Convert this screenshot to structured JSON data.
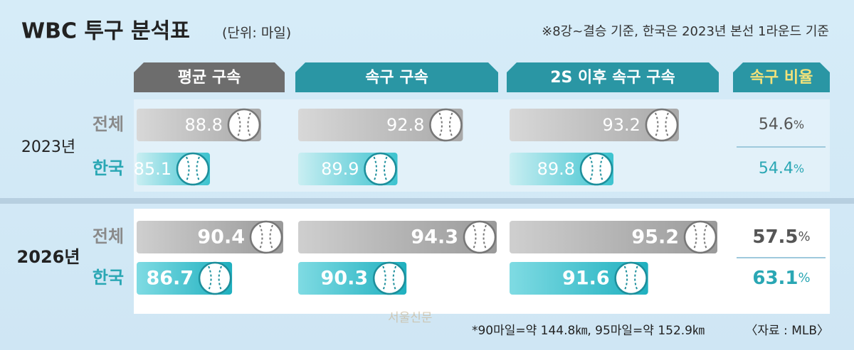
{
  "header": {
    "title": "WBC 투구 분석표",
    "unit": "(단위: 마일)",
    "note": "※8강~결승 기준, 한국은 2023년 본선 1라운드 기준"
  },
  "columns": [
    "평균 구속",
    "속구 구속",
    "2S 이후 속구 구속",
    "속구 비율"
  ],
  "row_labels": [
    "전체",
    "한국"
  ],
  "years": [
    {
      "label": "2023년",
      "rows": [
        {
          "speeds": [
            88.8,
            92.8,
            93.2
          ],
          "ratio": "54.6%"
        },
        {
          "speeds": [
            85.1,
            89.9,
            89.8
          ],
          "ratio": "54.4%"
        }
      ]
    },
    {
      "label": "2026년",
      "rows": [
        {
          "speeds": [
            90.4,
            94.3,
            95.2
          ],
          "ratio": "57.5%"
        },
        {
          "speeds": [
            86.7,
            90.3,
            91.6
          ],
          "ratio": "63.1%"
        }
      ]
    }
  ],
  "footnote": "*90마일=약 144.8㎞, 95마일=약 152.9㎞",
  "source": "〈자료 : MLB〉",
  "watermark": "서울신문"
}
